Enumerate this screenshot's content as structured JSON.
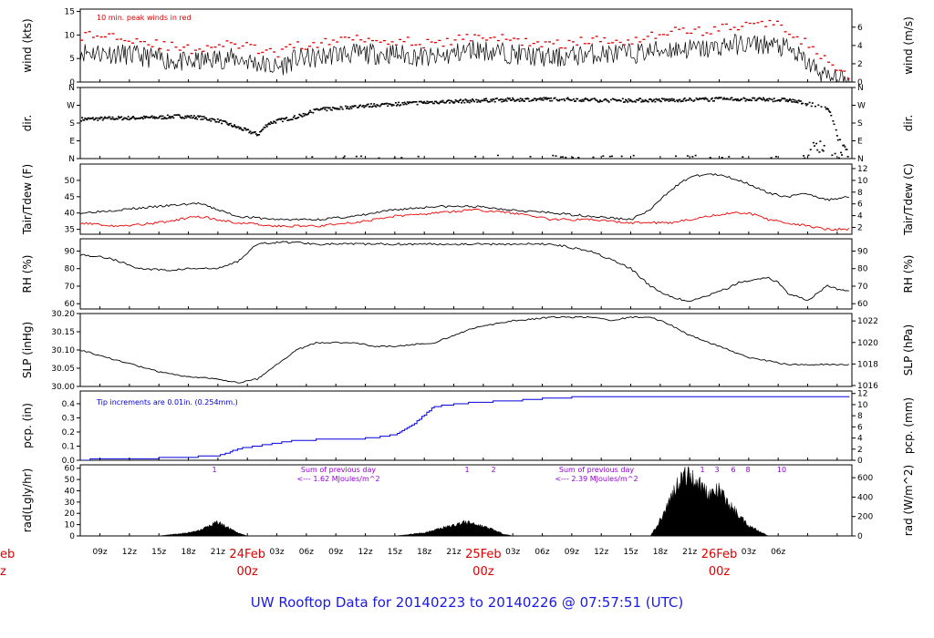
{
  "footer": {
    "title": "UW Rooftop Data for 20140223  to  20140226 @ 07:57:51  (UTC)"
  },
  "time_axis": {
    "ticks": [
      "09z",
      "12z",
      "15z",
      "18z",
      "21z",
      "03z",
      "06z",
      "09z",
      "12z",
      "15z",
      "18z",
      "21z",
      "03z",
      "06z",
      "09z",
      "12z",
      "15z",
      "18z",
      "21z",
      "03z",
      "06z"
    ],
    "day_labels": [
      {
        "date": "24Feb",
        "time": "00z"
      },
      {
        "date": "25Feb",
        "time": "00z"
      },
      {
        "date": "26Feb",
        "time": "00z"
      }
    ],
    "cut_left_date": "eb",
    "cut_left_time": "z"
  },
  "annotations": {
    "wind_note": "10 min. peak winds in red",
    "pcp_note": "Tip increments are 0.01in. (0.254mm.)",
    "rad_sum_label": "Sum of previous day",
    "rad_sum_1": "<--- 1.62 MJoules/m^2",
    "rad_sum_2": "<--- 2.39 MJoules/m^2",
    "rad_markers": [
      "1",
      "1",
      "2",
      "1",
      "3",
      "6",
      "8",
      "10"
    ]
  },
  "colors": {
    "frame": "#000000",
    "peak_wind": "#dd0000",
    "dewpoint": "#ee0000",
    "precip": "#0000dd",
    "annotation_purple": "#9400d3",
    "day_label": "#dd0000",
    "title": "#1a1ae6"
  },
  "panels": [
    {
      "id": "wind",
      "left_label": "wind (kts)",
      "right_label": "wind (m/s)",
      "left_ticks": [
        "0",
        "5",
        "10",
        "15"
      ],
      "right_ticks": [
        "0",
        "2",
        "4",
        "6"
      ]
    },
    {
      "id": "dir",
      "left_label": "dir.",
      "right_label": "dir.",
      "left_ticks": [
        "N",
        "E",
        "S",
        "W",
        "N"
      ],
      "right_ticks": [
        "N",
        "E",
        "S",
        "W",
        "N"
      ]
    },
    {
      "id": "temp",
      "left_label": "Tair/Tdew (F)",
      "right_label": "Tair/Tdew (C)",
      "left_ticks": [
        "35",
        "40",
        "45",
        "50"
      ],
      "right_ticks": [
        "2",
        "4",
        "6",
        "8",
        "10",
        "12"
      ]
    },
    {
      "id": "rh",
      "left_label": "RH (%)",
      "right_label": "RH (%)",
      "left_ticks": [
        "60",
        "70",
        "80",
        "90"
      ],
      "right_ticks": [
        "60",
        "70",
        "80",
        "90"
      ]
    },
    {
      "id": "slp",
      "left_label": "SLP (inHg)",
      "right_label": "SLP (hPa)",
      "left_ticks": [
        "30.00",
        "30.05",
        "30.10",
        "30.15",
        "30.20"
      ],
      "right_ticks": [
        "1016",
        "1018",
        "1020",
        "1022"
      ]
    },
    {
      "id": "pcp",
      "left_label": "pcp. (in)",
      "right_label": "pcp. (mm)",
      "left_ticks": [
        "0.0",
        "0.1",
        "0.2",
        "0.3",
        "0.4"
      ],
      "right_ticks": [
        "0",
        "2",
        "4",
        "6",
        "8",
        "10",
        "12"
      ]
    },
    {
      "id": "rad",
      "left_label": "rad(Lgly/hr)",
      "right_label": "rad (W/m^2)",
      "left_ticks": [
        "0",
        "10",
        "20",
        "30",
        "40",
        "50",
        "60"
      ],
      "right_ticks": [
        "0",
        "200",
        "400",
        "600"
      ]
    }
  ],
  "chart_data": [
    {
      "type": "line",
      "panel": "wind",
      "xunit": "hours since 2014-02-23 07:00Z",
      "ylim": [
        0,
        15.5
      ],
      "series": [
        {
          "x": [
            0,
            4,
            8,
            11,
            14,
            16,
            18,
            20,
            22,
            24,
            26,
            28,
            30,
            32,
            36,
            40,
            44,
            48,
            52,
            56,
            60,
            64,
            66,
            68,
            70,
            72,
            74,
            76,
            78
          ],
          "values": [
            6.5,
            6,
            5,
            4,
            5,
            5,
            4,
            3,
            5,
            5,
            6,
            6,
            6,
            6,
            5,
            7,
            6,
            5,
            6,
            6,
            7,
            7,
            8,
            8,
            8,
            7,
            4,
            1,
            0
          ]
        },
        {
          "x": [
            0,
            4,
            8,
            11,
            14,
            16,
            18,
            20,
            22,
            24,
            26,
            28,
            30,
            32,
            36,
            40,
            44,
            48,
            52,
            56,
            60,
            64,
            66,
            68,
            70,
            72,
            74,
            76,
            78
          ],
          "values": [
            10,
            10,
            8,
            7,
            8,
            8,
            7,
            6,
            8,
            8,
            9,
            10,
            9,
            9,
            8,
            10,
            9,
            8,
            9,
            9,
            11,
            11,
            12,
            12,
            13,
            11,
            8,
            4,
            1
          ]
        }
      ]
    },
    {
      "type": "scatter",
      "panel": "dir",
      "xunit": "hours since 2014-02-23 07:00Z",
      "ylim": [
        0,
        360
      ],
      "ylabels_deg": {
        "N": 0,
        "E": 90,
        "S": 180,
        "W": 270,
        "N_top": 360
      },
      "x": [
        0,
        3,
        6,
        8,
        10,
        12,
        14,
        16,
        18,
        19,
        20,
        22,
        24,
        30,
        36,
        42,
        48,
        54,
        60,
        66,
        72,
        76,
        77,
        78
      ],
      "values": [
        203,
        207,
        210,
        212,
        218,
        212,
        195,
        160,
        125,
        180,
        195,
        215,
        250,
        275,
        290,
        300,
        305,
        298,
        300,
        305,
        300,
        260,
        110,
        40
      ]
    },
    {
      "type": "line",
      "panel": "temp",
      "xunit": "hours since 2014-02-23 07:00Z",
      "ylim": [
        33.5,
        55
      ],
      "series": [
        {
          "x": [
            0,
            4,
            8,
            12,
            14,
            16,
            20,
            24,
            28,
            32,
            36,
            40,
            44,
            48,
            52,
            56,
            58,
            60,
            62,
            64,
            66,
            68,
            70,
            72,
            74,
            76,
            78
          ],
          "values": [
            40,
            41,
            42,
            43,
            41,
            39,
            38,
            38,
            39,
            41,
            42,
            42,
            41,
            40,
            39,
            38,
            41,
            47,
            51,
            52,
            51,
            49,
            46,
            45,
            46,
            44,
            45
          ]
        },
        {
          "x": [
            0,
            4,
            8,
            12,
            14,
            16,
            20,
            24,
            28,
            32,
            36,
            40,
            44,
            48,
            52,
            56,
            58,
            60,
            62,
            64,
            66,
            68,
            70,
            72,
            74,
            76,
            78
          ],
          "values": [
            37,
            36,
            37,
            39,
            38,
            37,
            36,
            36,
            37,
            39,
            40,
            41,
            40,
            38,
            38,
            37,
            37,
            37,
            38,
            39,
            40,
            40,
            38,
            37,
            36,
            35,
            35
          ]
        }
      ]
    },
    {
      "type": "line",
      "panel": "rh",
      "xunit": "hours since 2014-02-23 07:00Z",
      "ylim": [
        57,
        97
      ],
      "x": [
        0,
        3,
        6,
        9,
        11,
        14,
        16,
        18,
        20,
        22,
        24,
        26,
        28,
        30,
        32,
        36,
        40,
        44,
        48,
        52,
        56,
        58,
        60,
        62,
        63,
        66,
        67,
        70,
        71,
        72,
        74,
        76,
        78
      ],
      "values": [
        88,
        86,
        80,
        79,
        80,
        80,
        84,
        94,
        95,
        95,
        94,
        94,
        94,
        94,
        94,
        94,
        94,
        94,
        94,
        90,
        80,
        70,
        64,
        61,
        63,
        69,
        72,
        75,
        72,
        66,
        62,
        70,
        67
      ]
    },
    {
      "type": "line",
      "panel": "slp",
      "xunit": "hours since 2014-02-23 07:00Z",
      "ylim": [
        30.0,
        30.2
      ],
      "x": [
        0,
        4,
        8,
        10,
        14,
        16,
        18,
        20,
        22,
        24,
        26,
        28,
        30,
        32,
        36,
        40,
        44,
        48,
        52,
        54,
        56,
        58,
        60,
        62,
        64,
        66,
        68,
        70,
        72,
        74,
        76,
        78
      ],
      "values": [
        30.1,
        30.07,
        30.04,
        30.03,
        30.02,
        30.01,
        30.02,
        30.06,
        30.1,
        30.12,
        30.12,
        30.12,
        30.11,
        30.11,
        30.12,
        30.16,
        30.18,
        30.19,
        30.19,
        30.18,
        30.19,
        30.19,
        30.17,
        30.14,
        30.12,
        30.1,
        30.08,
        30.07,
        30.06,
        30.06,
        30.06,
        30.06
      ]
    },
    {
      "type": "line",
      "panel": "pcp",
      "xunit": "hours since 2014-02-23 07:00Z",
      "ylim": [
        0,
        0.49
      ],
      "x": [
        0,
        2,
        6,
        10,
        14,
        15,
        16,
        18,
        22,
        26,
        28,
        30,
        32,
        34,
        36,
        40,
        44,
        48,
        52,
        56,
        60,
        64,
        68,
        72,
        76,
        78
      ],
      "values": [
        0.0,
        0.01,
        0.01,
        0.02,
        0.03,
        0.05,
        0.08,
        0.1,
        0.14,
        0.15,
        0.15,
        0.16,
        0.18,
        0.26,
        0.38,
        0.41,
        0.42,
        0.44,
        0.45,
        0.45,
        0.45,
        0.45,
        0.45,
        0.45,
        0.45,
        0.45
      ]
    },
    {
      "type": "area",
      "panel": "rad",
      "xunit": "hours since 2014-02-23 07:00Z",
      "ylim": [
        0,
        63
      ],
      "x": [
        0,
        8,
        11,
        12,
        13,
        14,
        15,
        16,
        17,
        32,
        35,
        36,
        38,
        39,
        40,
        42,
        43,
        44,
        45,
        58,
        59,
        60,
        61,
        62,
        63,
        64,
        65,
        66,
        67,
        68,
        70,
        78
      ],
      "values": [
        0,
        0,
        3,
        5,
        9,
        13,
        8,
        3,
        0,
        0,
        3,
        6,
        10,
        13,
        12,
        6,
        2,
        0,
        0,
        0,
        15,
        35,
        55,
        58,
        50,
        40,
        43,
        30,
        20,
        10,
        0,
        0
      ]
    }
  ]
}
